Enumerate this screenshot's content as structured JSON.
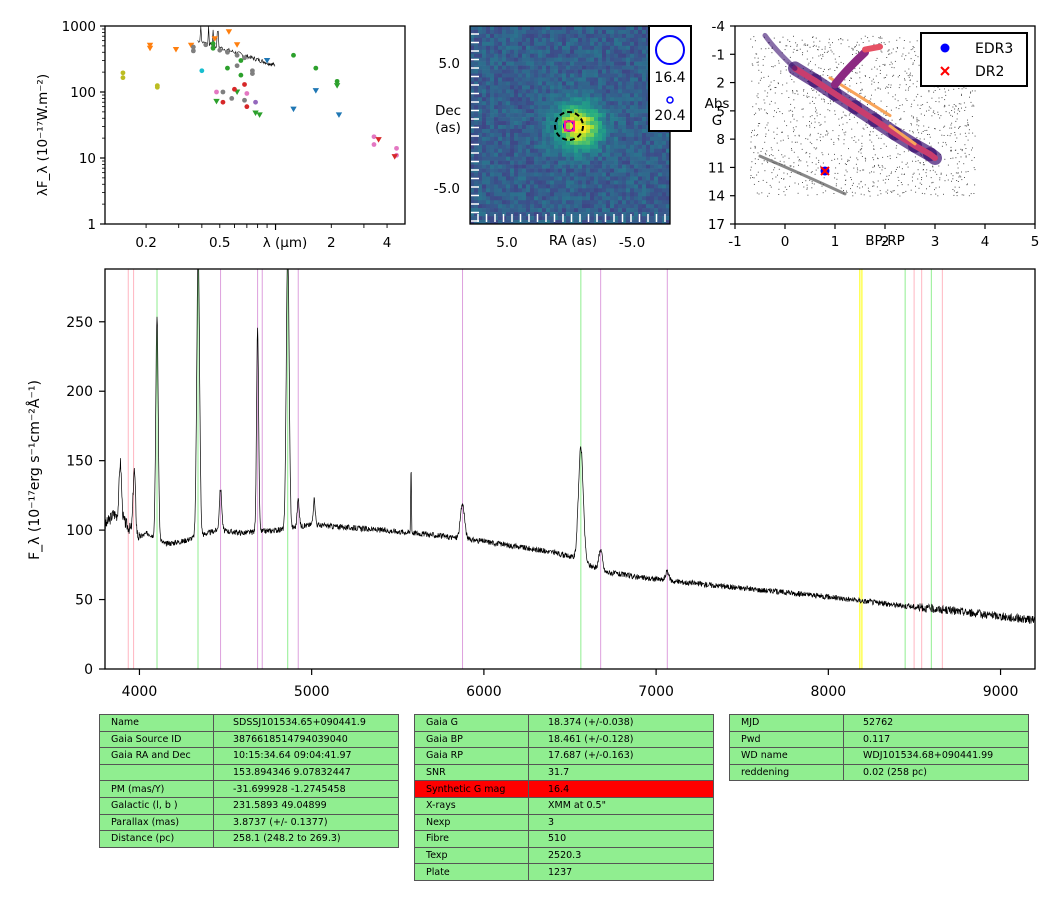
{
  "sed": {
    "ylabel": "λF_λ (10⁻¹⁷W.m⁻²)",
    "xlabel": "λ (μm)",
    "y_ticks": [
      "1",
      "10",
      "100",
      "1000"
    ],
    "x_ticks": [
      "0.2",
      "0.5",
      "2",
      "4"
    ],
    "colors": {
      "yellow": "#bcbd22",
      "orange": "#ff7f0e",
      "grey": "#7f7f7f",
      "green": "#2ca02c",
      "blue": "#1f77b4",
      "pink": "#e377c2",
      "cyan": "#17becf",
      "red": "#d62728",
      "purple": "#9467bd"
    }
  },
  "image_panel": {
    "xlabel": "RA (as)",
    "ylabel_line1": "Dec",
    "ylabel_line2": "(as)",
    "x_ticks": [
      "5.0",
      "-5.0"
    ],
    "y_ticks": [
      "5.0",
      "-5.0"
    ],
    "mag_large": "16.4",
    "mag_small": "20.4"
  },
  "hrd": {
    "xlabel": "BP-RP",
    "ylabel_line1": "Abs",
    "ylabel_line2": "G",
    "x_ticks": [
      "-1",
      "0",
      "1",
      "2",
      "3",
      "4",
      "5"
    ],
    "y_ticks": [
      "-4",
      "-1",
      "2",
      "5",
      "8",
      "11",
      "14",
      "17"
    ],
    "legend": [
      {
        "label": "EDR3",
        "color": "#0000ff"
      },
      {
        "label": "DR2",
        "color": "#ff0000"
      }
    ]
  },
  "chart_data": [
    {
      "type": "scatter",
      "title": "",
      "xlabel": "λ (μm)",
      "ylabel": "λF_λ (10⁻¹⁷W.m⁻²)",
      "xscale": "log",
      "yscale": "log",
      "xlim": [
        0.12,
        5
      ],
      "ylim": [
        1,
        1000
      ],
      "points": [
        {
          "x": 0.15,
          "y": 195,
          "c": "yellow",
          "m": "o"
        },
        {
          "x": 0.15,
          "y": 165,
          "c": "yellow",
          "m": "o"
        },
        {
          "x": 0.23,
          "y": 125,
          "c": "yellow",
          "m": "o"
        },
        {
          "x": 0.23,
          "y": 118,
          "c": "yellow",
          "m": "o"
        },
        {
          "x": 0.21,
          "y": 510,
          "c": "orange",
          "m": "v"
        },
        {
          "x": 0.21,
          "y": 460,
          "c": "orange",
          "m": "v"
        },
        {
          "x": 0.29,
          "y": 440,
          "c": "orange",
          "m": "v"
        },
        {
          "x": 0.35,
          "y": 510,
          "c": "orange",
          "m": "v"
        },
        {
          "x": 0.47,
          "y": 640,
          "c": "orange",
          "m": "v"
        },
        {
          "x": 0.56,
          "y": 820,
          "c": "orange",
          "m": "v"
        },
        {
          "x": 0.62,
          "y": 520,
          "c": "orange",
          "m": "v"
        },
        {
          "x": 0.36,
          "y": 480,
          "c": "grey",
          "m": "o"
        },
        {
          "x": 0.36,
          "y": 420,
          "c": "grey",
          "m": "o"
        },
        {
          "x": 0.42,
          "y": 520,
          "c": "grey",
          "m": "o"
        },
        {
          "x": 0.46,
          "y": 470,
          "c": "grey",
          "m": "o"
        },
        {
          "x": 0.5,
          "y": 430,
          "c": "grey",
          "m": "o"
        },
        {
          "x": 0.55,
          "y": 400,
          "c": "grey",
          "m": "o"
        },
        {
          "x": 0.62,
          "y": 360,
          "c": "grey",
          "m": "o"
        },
        {
          "x": 0.68,
          "y": 330,
          "c": "grey",
          "m": "o"
        },
        {
          "x": 0.62,
          "y": 250,
          "c": "grey",
          "m": "o"
        },
        {
          "x": 0.75,
          "y": 210,
          "c": "grey",
          "m": "o"
        },
        {
          "x": 0.75,
          "y": 190,
          "c": "grey",
          "m": "o"
        },
        {
          "x": 0.52,
          "y": 100,
          "c": "grey",
          "m": "o"
        },
        {
          "x": 0.58,
          "y": 80,
          "c": "grey",
          "m": "o"
        },
        {
          "x": 0.68,
          "y": 75,
          "c": "grey",
          "m": "o"
        },
        {
          "x": 0.46,
          "y": 540,
          "c": "green",
          "m": "o"
        },
        {
          "x": 0.46,
          "y": 460,
          "c": "green",
          "m": "o"
        },
        {
          "x": 0.55,
          "y": 230,
          "c": "green",
          "m": "o"
        },
        {
          "x": 0.65,
          "y": 300,
          "c": "green",
          "m": "o"
        },
        {
          "x": 0.65,
          "y": 180,
          "c": "green",
          "m": "o"
        },
        {
          "x": 1.25,
          "y": 360,
          "c": "green",
          "m": "o"
        },
        {
          "x": 1.65,
          "y": 230,
          "c": "green",
          "m": "o"
        },
        {
          "x": 2.15,
          "y": 145,
          "c": "green",
          "m": "o"
        },
        {
          "x": 2.15,
          "y": 125,
          "c": "green",
          "m": "v"
        },
        {
          "x": 0.48,
          "y": 72,
          "c": "green",
          "m": "v"
        },
        {
          "x": 0.62,
          "y": 100,
          "c": "green",
          "m": "v"
        },
        {
          "x": 0.78,
          "y": 48,
          "c": "green",
          "m": "v"
        },
        {
          "x": 0.82,
          "y": 45,
          "c": "green",
          "m": "v"
        },
        {
          "x": 0.9,
          "y": 300,
          "c": "blue",
          "m": "v"
        },
        {
          "x": 1.25,
          "y": 55,
          "c": "blue",
          "m": "v"
        },
        {
          "x": 1.65,
          "y": 105,
          "c": "blue",
          "m": "v"
        },
        {
          "x": 2.2,
          "y": 45,
          "c": "blue",
          "m": "v"
        },
        {
          "x": 0.4,
          "y": 210,
          "c": "cyan",
          "m": "o"
        },
        {
          "x": 0.48,
          "y": 100,
          "c": "pink",
          "m": "o"
        },
        {
          "x": 0.7,
          "y": 95,
          "c": "pink",
          "m": "o"
        },
        {
          "x": 0.6,
          "y": 110,
          "c": "red",
          "m": "o"
        },
        {
          "x": 0.68,
          "y": 130,
          "c": "red",
          "m": "o"
        },
        {
          "x": 0.52,
          "y": 70,
          "c": "red",
          "m": "o"
        },
        {
          "x": 0.7,
          "y": 60,
          "c": "red",
          "m": "o"
        },
        {
          "x": 0.78,
          "y": 70,
          "c": "purple",
          "m": "o"
        },
        {
          "x": 3.4,
          "y": 21,
          "c": "pink",
          "m": "o"
        },
        {
          "x": 3.4,
          "y": 16,
          "c": "pink",
          "m": "o"
        },
        {
          "x": 3.6,
          "y": 19,
          "c": "red",
          "m": "v"
        },
        {
          "x": 4.5,
          "y": 14,
          "c": "pink",
          "m": "o"
        },
        {
          "x": 4.5,
          "y": 11,
          "c": "pink",
          "m": "o"
        },
        {
          "x": 4.4,
          "y": 10.5,
          "c": "red",
          "m": "v"
        }
      ]
    },
    {
      "type": "heatmap",
      "title": "",
      "xlabel": "RA (as)",
      "ylabel": "Dec (as)",
      "xlim": [
        8.1,
        -8.1
      ],
      "ylim": [
        -8.1,
        8.1
      ],
      "source_center": [
        0,
        -0.8
      ],
      "dashed_circle_radius": 1.1,
      "catalog_marks": [
        {
          "label": "EDR3",
          "color": "#0000ff"
        },
        {
          "label": "DR2",
          "color": "#ff0000"
        }
      ]
    },
    {
      "type": "scatter",
      "title": "",
      "xlabel": "BP-RP",
      "ylabel": "Abs G",
      "xlim": [
        -1,
        5
      ],
      "ylim": [
        17,
        -4
      ],
      "legend": [
        "EDR3",
        "DR2"
      ],
      "legend_position": "top-right",
      "target": {
        "edr3": [
          0.8,
          11.2
        ],
        "dr2": [
          0.8,
          11.2
        ]
      }
    },
    {
      "type": "line",
      "title": "",
      "xlabel": "",
      "ylabel": "F_λ (10⁻¹⁷erg s⁻¹cm⁻²Å⁻¹)",
      "xlim": [
        3800,
        9200
      ],
      "ylim": [
        0,
        288
      ],
      "x_ticks": [
        4000,
        5000,
        6000,
        7000,
        8000,
        9000
      ],
      "y_ticks": [
        0,
        50,
        100,
        150,
        200,
        250
      ],
      "continuum": [
        [
          3800,
          103
        ],
        [
          3850,
          112
        ],
        [
          3900,
          108
        ],
        [
          3950,
          100
        ],
        [
          4000,
          95
        ],
        [
          4050,
          98
        ],
        [
          4150,
          90
        ],
        [
          4250,
          92
        ],
        [
          4450,
          100
        ],
        [
          4600,
          98
        ],
        [
          4800,
          100
        ],
        [
          5000,
          104
        ],
        [
          5200,
          102
        ],
        [
          5400,
          100
        ],
        [
          5600,
          98
        ],
        [
          5800,
          95
        ],
        [
          6000,
          92
        ],
        [
          6200,
          88
        ],
        [
          6400,
          84
        ],
        [
          6500,
          81
        ],
        [
          6700,
          70
        ],
        [
          6900,
          66
        ],
        [
          7200,
          62
        ],
        [
          7600,
          57
        ],
        [
          8000,
          52
        ],
        [
          8400,
          46
        ],
        [
          8800,
          41
        ],
        [
          9200,
          35
        ]
      ],
      "emission_lines": [
        {
          "x": 3889,
          "height": 40,
          "width": 7
        },
        {
          "x": 3970,
          "height": 45,
          "width": 7
        },
        {
          "x": 4102,
          "height": 160,
          "width": 7
        },
        {
          "x": 4341,
          "height": 210,
          "width": 8
        },
        {
          "x": 4471,
          "height": 30,
          "width": 7
        },
        {
          "x": 4686,
          "height": 145,
          "width": 6
        },
        {
          "x": 4861,
          "height": 210,
          "width": 8
        },
        {
          "x": 4922,
          "height": 20,
          "width": 6
        },
        {
          "x": 5015,
          "height": 18,
          "width": 6
        },
        {
          "x": 5577,
          "height": 50,
          "width": 2
        },
        {
          "x": 5876,
          "height": 25,
          "width": 12
        },
        {
          "x": 6563,
          "height": 82,
          "width": 14
        },
        {
          "x": 6678,
          "height": 15,
          "width": 10
        },
        {
          "x": 7065,
          "height": 6,
          "width": 10
        }
      ],
      "vlines": [
        {
          "x": 3935,
          "color": "#ffb6c1"
        },
        {
          "x": 3966,
          "color": "#ffb6c1"
        },
        {
          "x": 4102,
          "color": "#90ee90"
        },
        {
          "x": 4340,
          "color": "#90ee90"
        },
        {
          "x": 4471,
          "color": "#dda0dd"
        },
        {
          "x": 4686,
          "color": "#dda0dd"
        },
        {
          "x": 4713,
          "color": "#dda0dd"
        },
        {
          "x": 4861,
          "color": "#90ee90"
        },
        {
          "x": 4922,
          "color": "#dda0dd"
        },
        {
          "x": 5876,
          "color": "#dda0dd"
        },
        {
          "x": 6563,
          "color": "#90ee90"
        },
        {
          "x": 6678,
          "color": "#dda0dd"
        },
        {
          "x": 7065,
          "color": "#dda0dd"
        },
        {
          "x": 8183,
          "color": "#ffff00"
        },
        {
          "x": 8195,
          "color": "#ffff00"
        },
        {
          "x": 8446,
          "color": "#90ee90"
        },
        {
          "x": 8498,
          "color": "#ffb6c1"
        },
        {
          "x": 8542,
          "color": "#ffb6c1"
        },
        {
          "x": 8598,
          "color": "#90ee90"
        },
        {
          "x": 8662,
          "color": "#ffb6c1"
        }
      ]
    }
  ],
  "tables": {
    "left": [
      [
        "Name",
        "SDSSJ101534.65+090441.9"
      ],
      [
        "Gaia Source ID",
        "3876618514794039040"
      ],
      [
        "Gaia RA and Dec",
        "10:15:34.64    09:04:41.97"
      ],
      [
        "",
        "153.894346    9.07832447"
      ],
      [
        "PM (mas/Y)",
        "-31.699928    -1.2745458"
      ],
      [
        "Galactic (l, b )",
        "231.5893    49.04899"
      ],
      [
        "Parallax (mas)",
        "3.8737 (+/- 0.1377)"
      ],
      [
        "Distance (pc)",
        "258.1 (248.2 to 269.3)"
      ]
    ],
    "middle": [
      [
        "Gaia G",
        "18.374 (+/-0.038)"
      ],
      [
        "Gaia BP",
        "18.461 (+/-0.128)"
      ],
      [
        "Gaia RP",
        "17.687 (+/-0.163)"
      ],
      [
        "SNR",
        "31.7"
      ],
      [
        "Synthetic G mag",
        "16.4"
      ],
      [
        "X-rays",
        "XMM at 0.5\""
      ],
      [
        "Nexp",
        "3"
      ],
      [
        "Fibre",
        "510"
      ],
      [
        "Texp",
        "2520.3"
      ],
      [
        "Plate",
        "1237"
      ]
    ],
    "middle_highlight_row": 4,
    "right": [
      [
        "MJD",
        "52762"
      ],
      [
        "Pwd",
        "0.117"
      ],
      [
        "WD name",
        "WDJ101534.68+090441.99"
      ],
      [
        "reddening",
        "0.02 (258 pc)"
      ]
    ],
    "cell_color": "#90ee90",
    "highlight_color": "#ff0000"
  }
}
